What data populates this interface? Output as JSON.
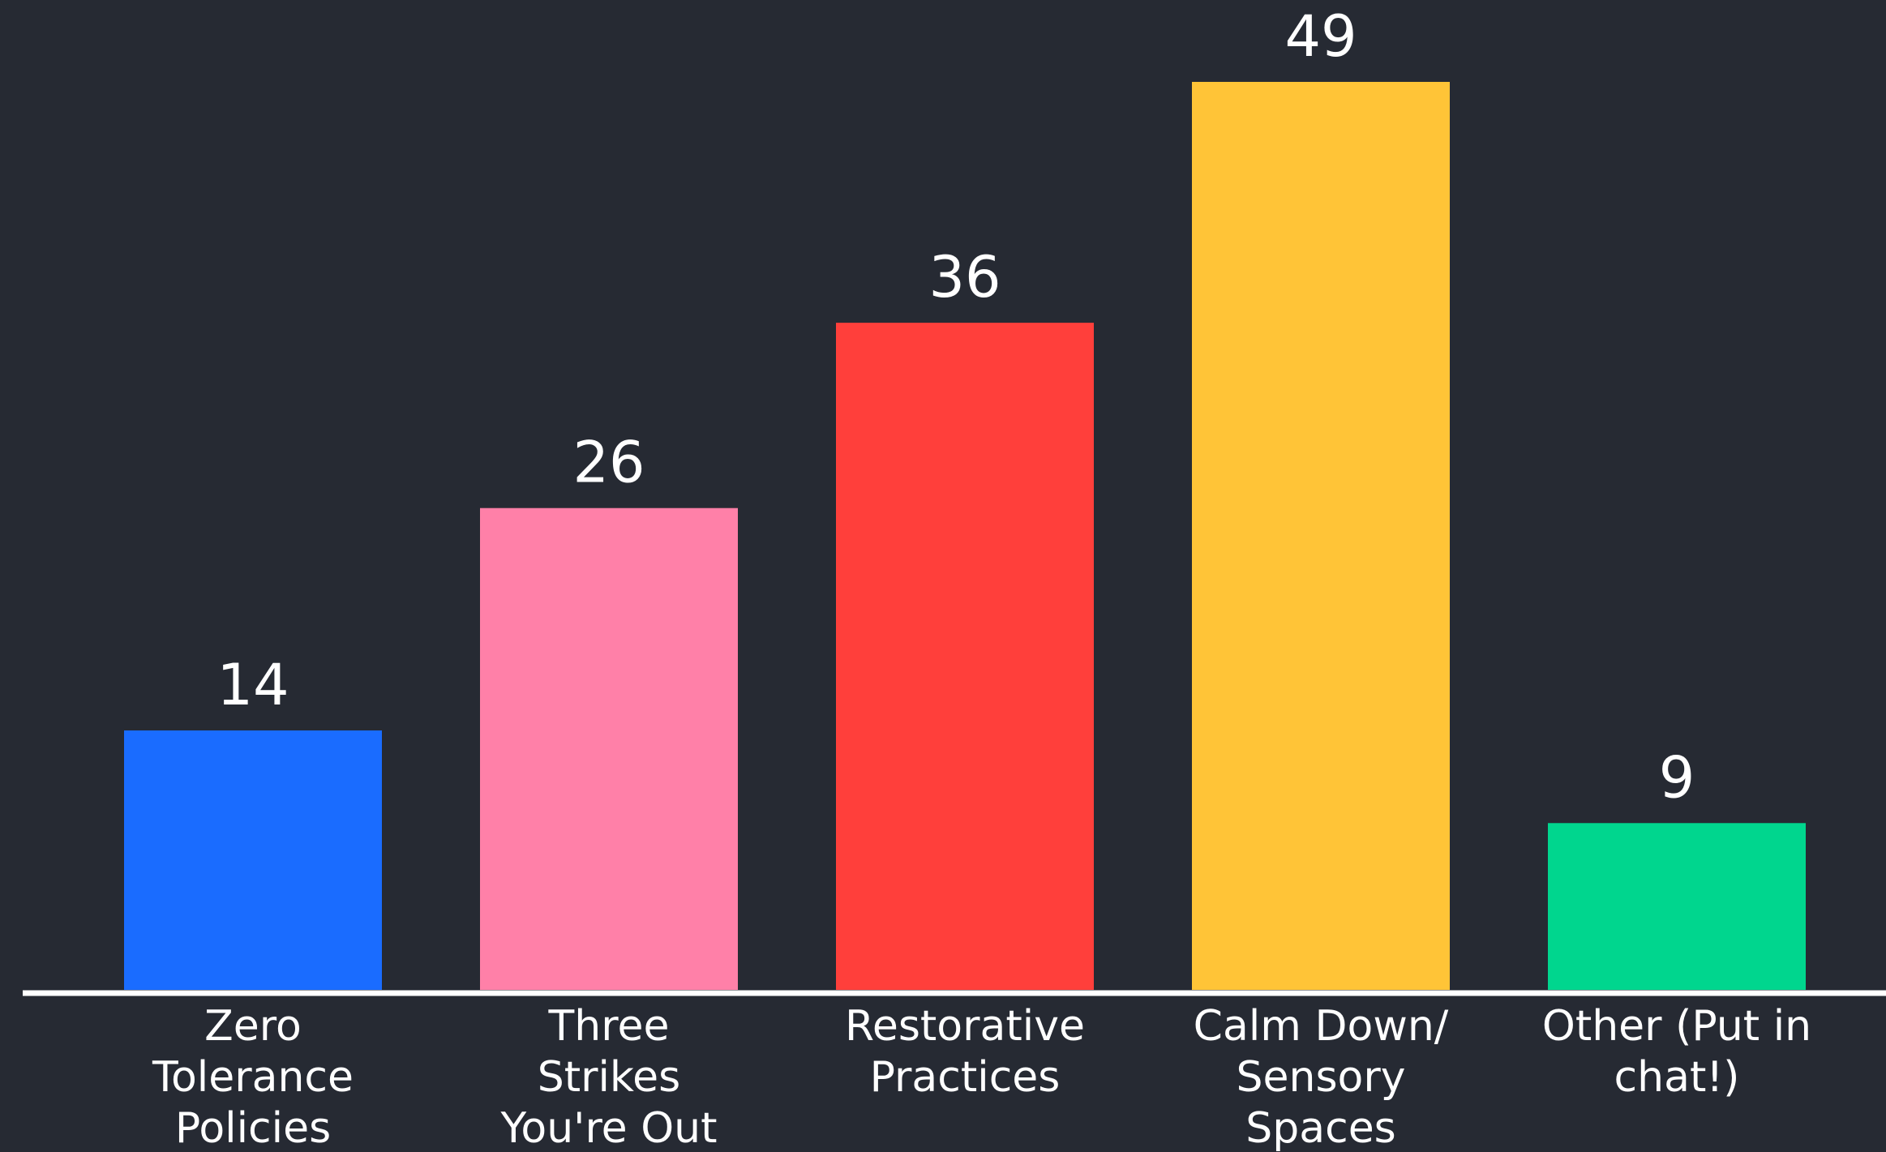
{
  "chart_data": {
    "type": "bar",
    "categories": [
      [
        "Zero",
        "Tolerance",
        "Policies"
      ],
      [
        "Three",
        "Strikes",
        "You're Out"
      ],
      [
        "Restorative",
        "Practices"
      ],
      [
        "Calm Down/",
        "Sensory",
        "Spaces"
      ],
      [
        "Other (Put in",
        "chat!)"
      ]
    ],
    "values": [
      14,
      26,
      36,
      49,
      9
    ],
    "colors": [
      "#1a6cff",
      "#ff80a8",
      "#ff3f3b",
      "#ffc437",
      "#00d68e"
    ],
    "data_labels": [
      "14",
      "26",
      "36",
      "49",
      "9"
    ],
    "title": "",
    "xlabel": "",
    "ylabel": "",
    "ylim": [
      0,
      49
    ],
    "grid": false,
    "legend": "none",
    "background": "#262a33",
    "axis_color": "#ffffff",
    "text_color": "#ffffff"
  }
}
